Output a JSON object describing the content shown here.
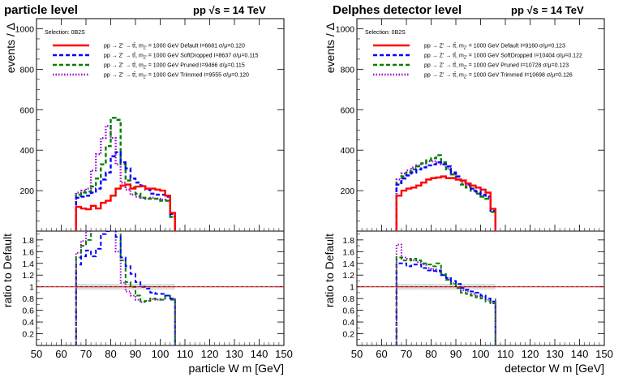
{
  "figure": {
    "energy": "pp   s = 14 TeV",
    "ratio_ylabel": "ratio to Default",
    "main_ylabel": "events / Δ"
  },
  "chart_data": [
    {
      "type": "line",
      "title": "particle level",
      "selection": "Selection: 0B2S",
      "xlabel": "particle W m [GeV]",
      "ylabel": "events / Δ",
      "ratio_ylabel": "ratio to Default",
      "xlim": [
        50,
        150
      ],
      "ylim": [
        0,
        1050
      ],
      "ratio_ylim": [
        0,
        1.95
      ],
      "x_ticks": [
        50,
        60,
        70,
        80,
        90,
        100,
        110,
        120,
        130,
        140,
        150
      ],
      "y_ticks": [
        200,
        400,
        600,
        800,
        1000
      ],
      "ratio_ticks": [
        0.2,
        0.4,
        0.6,
        0.8,
        1,
        1.2,
        1.4,
        1.6,
        1.8
      ],
      "bin_edges": [
        66,
        68,
        70,
        72,
        74,
        76,
        78,
        80,
        82,
        84,
        86,
        88,
        90,
        92,
        94,
        96,
        98,
        100,
        102,
        104,
        106
      ],
      "series": [
        {
          "name": "Default",
          "legend": "pp → Z' → tt̄, m_Z' = 1000 GeV Default I=6681 σ/μ=0.120",
          "color": "#ff0000",
          "dash": "solid",
          "values": [
            120,
            112,
            108,
            125,
            112,
            140,
            150,
            175,
            210,
            225,
            230,
            210,
            220,
            222,
            210,
            210,
            205,
            200,
            175,
            90
          ],
          "ratio": [
            1,
            1,
            1,
            1,
            1,
            1,
            1,
            1,
            1,
            1,
            1,
            1,
            1,
            1,
            1,
            1,
            1,
            1,
            1,
            1
          ]
        },
        {
          "name": "SoftDropped",
          "legend": "pp → Z' → tt̄, m_Z' = 1000 GeV SoftDropped I=8637 σ/μ=0.115",
          "color": "#0000ff",
          "dash": "5,3",
          "values": [
            165,
            170,
            175,
            190,
            210,
            255,
            290,
            370,
            390,
            340,
            310,
            260,
            240,
            225,
            205,
            185,
            180,
            180,
            170,
            85
          ],
          "ratio": [
            1.38,
            1.52,
            1.62,
            1.52,
            1.65,
            1.9,
            1.95,
            2.0,
            1.85,
            1.5,
            1.35,
            1.22,
            1.08,
            1.0,
            0.97,
            0.9,
            0.88,
            0.88,
            0.85,
            0.8
          ]
        },
        {
          "name": "Pruned",
          "legend": "pp → Z' → tt̄, m_Z' = 1000 GeV Pruned I=9466 σ/μ=0.115",
          "color": "#008000",
          "dash": "5,3",
          "values": [
            180,
            190,
            195,
            220,
            260,
            330,
            420,
            560,
            550,
            330,
            250,
            215,
            185,
            165,
            160,
            160,
            160,
            150,
            150,
            70
          ],
          "ratio": [
            1.5,
            1.7,
            1.8,
            2.0,
            2.1,
            2.2,
            2.3,
            2.4,
            2.3,
            1.45,
            1.08,
            1.0,
            0.85,
            0.75,
            0.76,
            0.8,
            0.79,
            0.78,
            0.85,
            0.78
          ]
        },
        {
          "name": "Trimmed",
          "legend": "pp → Z' → tt̄, m_Z' = 1000 GeV Trimmed I=9555 σ/μ=0.120",
          "color": "#9900cc",
          "dash": "1.5,2",
          "values": [
            190,
            200,
            210,
            300,
            380,
            460,
            520,
            460,
            330,
            240,
            205,
            180,
            170,
            165,
            160,
            165,
            160,
            155,
            150,
            72
          ],
          "ratio": [
            1.58,
            1.78,
            1.95,
            2.2,
            2.4,
            2.6,
            2.6,
            2.2,
            1.6,
            1.07,
            0.92,
            0.85,
            0.78,
            0.74,
            0.76,
            0.79,
            0.78,
            0.78,
            0.85,
            0.8
          ]
        }
      ],
      "legend_labels": {
        "Default": "pp → Z' → tt̄, m",
        "Default_rest": "= 1000 GeV Default I=6681 σ/μ=0.120",
        "SoftDropped_rest": "= 1000 GeV SoftDropped I=8637 σ/μ=0.115",
        "Pruned_rest": "= 1000 GeV Pruned I=9466 σ/μ=0.115",
        "Trimmed_rest": "= 1000 GeV Trimmed I=9555 σ/μ=0.120"
      }
    },
    {
      "type": "line",
      "title": "Delphes detector level",
      "selection": "Selection: 0B2S",
      "xlabel": "detector W m [GeV]",
      "ylabel": "events / Δ",
      "ratio_ylabel": "ratio to Default",
      "xlim": [
        50,
        150
      ],
      "ylim": [
        0,
        1050
      ],
      "ratio_ylim": [
        0,
        1.95
      ],
      "x_ticks": [
        50,
        60,
        70,
        80,
        90,
        100,
        110,
        120,
        130,
        140,
        150
      ],
      "y_ticks": [
        200,
        400,
        600,
        800,
        1000
      ],
      "ratio_ticks": [
        0.2,
        0.4,
        0.6,
        0.8,
        1,
        1.2,
        1.4,
        1.6,
        1.8
      ],
      "bin_edges": [
        66,
        68,
        70,
        72,
        74,
        76,
        78,
        80,
        82,
        84,
        86,
        88,
        90,
        92,
        94,
        96,
        98,
        100,
        102,
        104,
        106
      ],
      "series": [
        {
          "name": "Default",
          "legend": "pp → Z' → tt̄, m_Z' = 1000 GeV Default I=9160 σ/μ=0.123",
          "color": "#ff0000",
          "dash": "solid",
          "values": [
            175,
            200,
            210,
            215,
            225,
            240,
            255,
            262,
            265,
            270,
            262,
            262,
            255,
            250,
            235,
            225,
            215,
            205,
            190,
            110
          ],
          "ratio": [
            1,
            1,
            1,
            1,
            1,
            1,
            1,
            1,
            1,
            1,
            1,
            1,
            1,
            1,
            1,
            1,
            1,
            1,
            1,
            1
          ]
        },
        {
          "name": "SoftDropped",
          "legend": "pp → Z' → tt̄, m_Z' = 1000 GeV SoftDropped I=10404 σ/μ=0.122",
          "color": "#0000ff",
          "dash": "5,3",
          "values": [
            230,
            260,
            275,
            290,
            305,
            315,
            325,
            330,
            340,
            330,
            320,
            290,
            270,
            250,
            230,
            210,
            195,
            180,
            170,
            100
          ],
          "ratio": [
            1.4,
            1.4,
            1.35,
            1.38,
            1.38,
            1.32,
            1.28,
            1.27,
            1.28,
            1.2,
            1.15,
            1.1,
            1.05,
            0.98,
            0.95,
            0.92,
            0.9,
            0.85,
            0.8,
            0.75
          ]
        },
        {
          "name": "Pruned",
          "legend": "pp → Z' → tt̄, m_Z' = 1000 GeV Pruned I=10728 σ/μ=0.123",
          "color": "#008000",
          "dash": "5,3",
          "values": [
            240,
            270,
            290,
            305,
            320,
            335,
            350,
            360,
            375,
            340,
            305,
            280,
            255,
            230,
            215,
            200,
            185,
            170,
            160,
            95
          ],
          "ratio": [
            1.5,
            1.45,
            1.45,
            1.48,
            1.45,
            1.4,
            1.38,
            1.35,
            1.4,
            1.22,
            1.12,
            1.05,
            0.98,
            0.9,
            0.88,
            0.85,
            0.82,
            0.8,
            0.75,
            0.72
          ]
        },
        {
          "name": "Trimmed",
          "legend": "pp → Z' → tt̄, m_Z' = 1000 GeV Trimmed I=10698 σ/μ=0.126",
          "color": "#9900cc",
          "dash": "1.5,2",
          "values": [
            255,
            285,
            300,
            315,
            325,
            335,
            345,
            345,
            340,
            330,
            310,
            285,
            255,
            240,
            220,
            200,
            185,
            175,
            160,
            95
          ],
          "ratio": [
            1.72,
            1.5,
            1.48,
            1.45,
            1.42,
            1.38,
            1.32,
            1.3,
            1.26,
            1.2,
            1.15,
            1.06,
            0.98,
            0.94,
            0.92,
            0.88,
            0.84,
            0.83,
            0.78,
            0.72
          ]
        }
      ],
      "legend_labels": {
        "Default_rest": "= 1000 GeV Default I=9160 σ/μ=0.123",
        "SoftDropped_rest": "= 1000 GeV SoftDropped I=10404 σ/μ=0.122",
        "Pruned_rest": "= 1000 GeV Pruned I=10728 σ/μ=0.123",
        "Trimmed_rest": "= 1000 GeV Trimmed I=10698 σ/μ=0.126"
      }
    }
  ]
}
